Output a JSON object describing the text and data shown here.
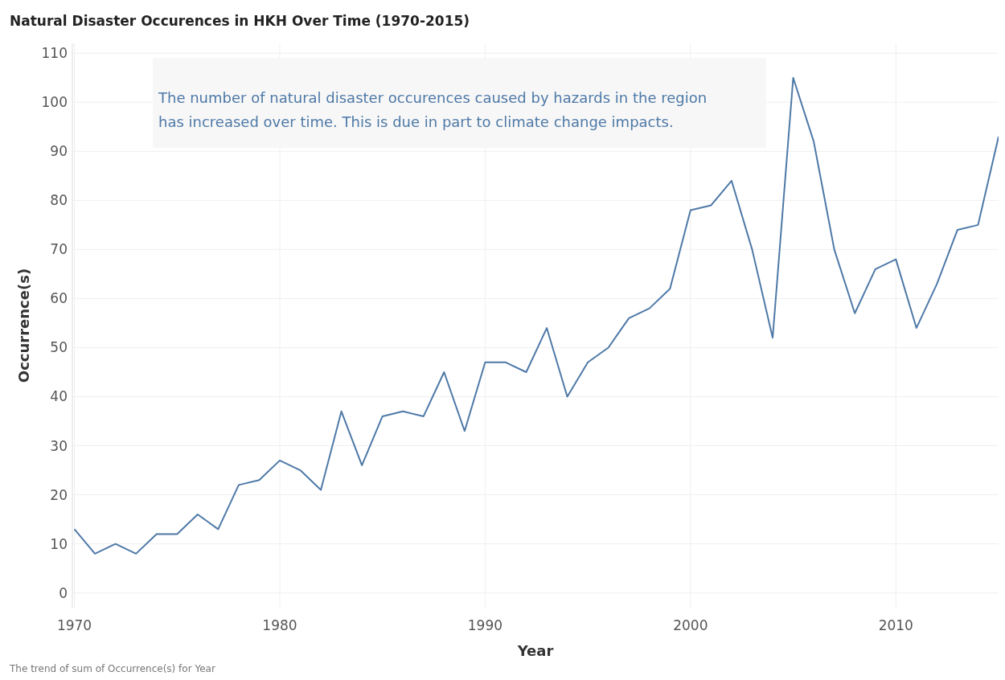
{
  "chart_data": {
    "type": "line",
    "title": "Natural Disaster Occurences in HKH Over Time (1970-2015)",
    "xlabel": "Year",
    "ylabel": "Occurrence(s)",
    "annotations": [
      "The number of natural disaster occurences caused by hazards in the region has increased over time. This is due in part to climate change impacts.",
      "The trend of sum of Occurrence(s) for Year"
    ],
    "x": [
      1970,
      1971,
      1972,
      1973,
      1974,
      1975,
      1976,
      1977,
      1978,
      1979,
      1980,
      1981,
      1982,
      1983,
      1984,
      1985,
      1986,
      1987,
      1988,
      1989,
      1990,
      1991,
      1992,
      1993,
      1994,
      1995,
      1996,
      1997,
      1998,
      1999,
      2000,
      2001,
      2002,
      2003,
      2004,
      2005,
      2006,
      2007,
      2008,
      2009,
      2010,
      2011,
      2012,
      2013,
      2014,
      2015
    ],
    "series": [
      {
        "color": "#4e79a7",
        "values": [
          13,
          8,
          10,
          8,
          12,
          12,
          16,
          13,
          22,
          23,
          27,
          25,
          21,
          37,
          26,
          36,
          37,
          36,
          45,
          33,
          47,
          47,
          45,
          54,
          40,
          47,
          50,
          56,
          58,
          62,
          78,
          79,
          84,
          70,
          52,
          105,
          92,
          70,
          57,
          66,
          68,
          54,
          63,
          74,
          75,
          93
        ]
      }
    ],
    "xlim": [
      1969.9,
      2015
    ],
    "xticks": [
      1970,
      1980,
      1990,
      2000,
      2010
    ],
    "ylim": [
      -3,
      112
    ],
    "yticks": [
      0,
      10,
      20,
      30,
      40,
      50,
      60,
      70,
      80,
      90,
      100,
      110
    ],
    "grid": true,
    "marker": "none",
    "line_style": "solid"
  }
}
